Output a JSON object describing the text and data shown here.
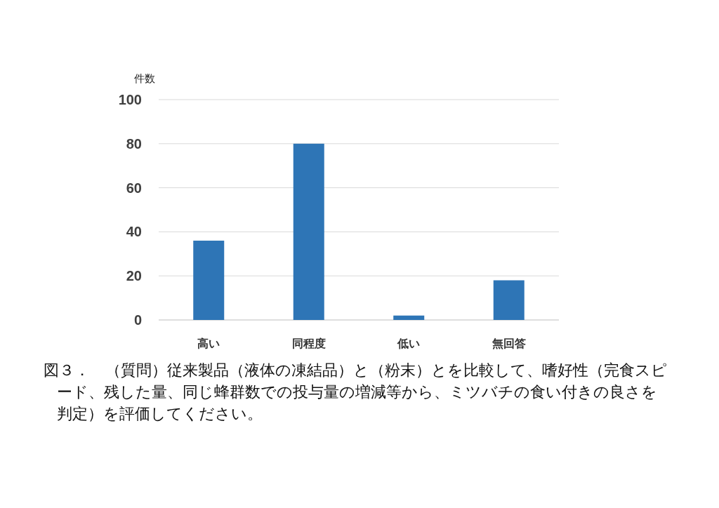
{
  "chart_data": {
    "type": "bar",
    "ylabel": "件数",
    "categories": [
      "高い",
      "同程度",
      "低い",
      "無回答"
    ],
    "values": [
      36,
      80,
      2,
      18
    ],
    "color": "#2e75b6",
    "ylim": [
      0,
      100
    ],
    "yticks": [
      0,
      20,
      40,
      60,
      80,
      100
    ],
    "grid": "y",
    "annotations": [
      "図３．　（質問）従来製品（液体の凍結品）と（粉末）とを比較して、嗜好性（完食スピード、残した量、同じ蜂群数での投与量の増減等から、ミツバチの食い付きの良さを判定）を評価してください。"
    ]
  }
}
